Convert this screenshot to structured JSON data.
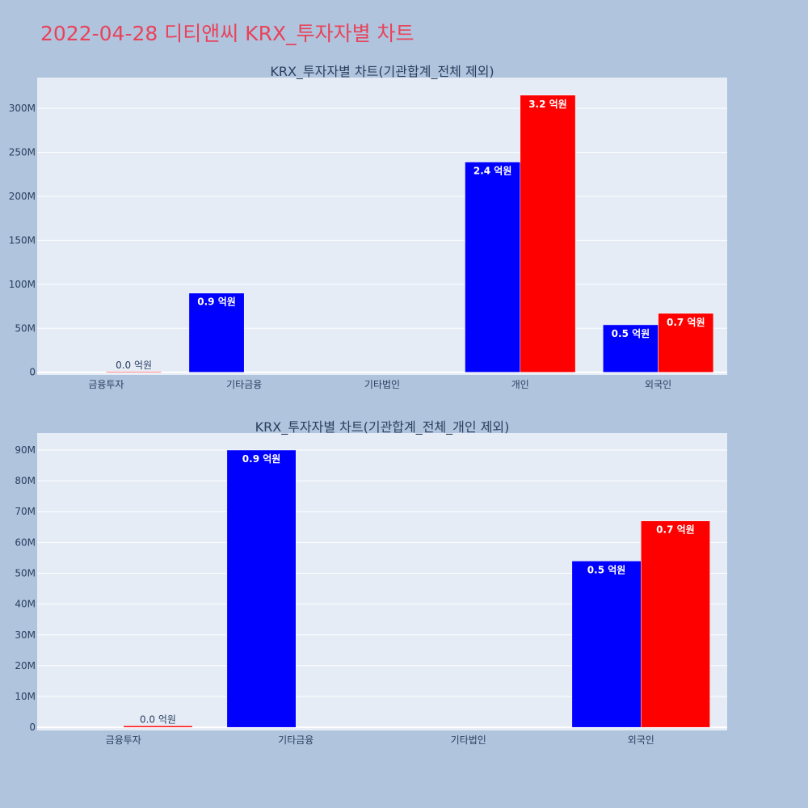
{
  "title": "2022-04-28 디티앤씨 KRX_투자자별 차트",
  "colors": {
    "background": "#b0c4de",
    "plot": "#e5ecf6",
    "title": "#e8435a",
    "series_blue": "#0000ff",
    "series_red": "#ff0000"
  },
  "chart_data": [
    {
      "type": "bar",
      "title": "KRX_투자자별 차트(기관합계_전체 제외)",
      "categories": [
        "금융투자",
        "기타금융",
        "기타법인",
        "개인",
        "외국인"
      ],
      "ylim": [
        -3000000,
        335000000
      ],
      "yticks": [
        0,
        50000000,
        100000000,
        150000000,
        200000000,
        250000000,
        300000000
      ],
      "ytick_labels": [
        "0",
        "50M",
        "100M",
        "150M",
        "200M",
        "250M",
        "300M"
      ],
      "grid": true,
      "legend": "none",
      "series": [
        {
          "color": "#0000ff",
          "values": [
            0,
            90000000,
            0,
            239000000,
            54000000
          ],
          "labels": [
            "",
            "0.9 억원",
            "",
            "2.4 억원",
            "0.5 억원"
          ]
        },
        {
          "color": "#ff0000",
          "values": [
            500000,
            0,
            0,
            315000000,
            67000000
          ],
          "labels": [
            "0.0 억원",
            "",
            "",
            "3.2 억원",
            "0.7 억원"
          ]
        }
      ]
    },
    {
      "type": "bar",
      "title": "KRX_투자자별 차트(기관합계_전체_개인 제외)",
      "categories": [
        "금융투자",
        "기타금융",
        "기타법인",
        "외국인"
      ],
      "ylim": [
        -1000000,
        95500000
      ],
      "yticks": [
        0,
        10000000,
        20000000,
        30000000,
        40000000,
        50000000,
        60000000,
        70000000,
        80000000,
        90000000
      ],
      "ytick_labels": [
        "0",
        "10M",
        "20M",
        "30M",
        "40M",
        "50M",
        "60M",
        "70M",
        "80M",
        "90M"
      ],
      "grid": true,
      "legend": "none",
      "series": [
        {
          "color": "#0000ff",
          "values": [
            0,
            90000000,
            0,
            54000000
          ],
          "labels": [
            "",
            "0.9 억원",
            "",
            "0.5 억원"
          ]
        },
        {
          "color": "#ff0000",
          "values": [
            500000,
            0,
            0,
            67000000
          ],
          "labels": [
            "0.0 억원",
            "",
            "",
            "0.7 억원"
          ]
        }
      ]
    }
  ]
}
